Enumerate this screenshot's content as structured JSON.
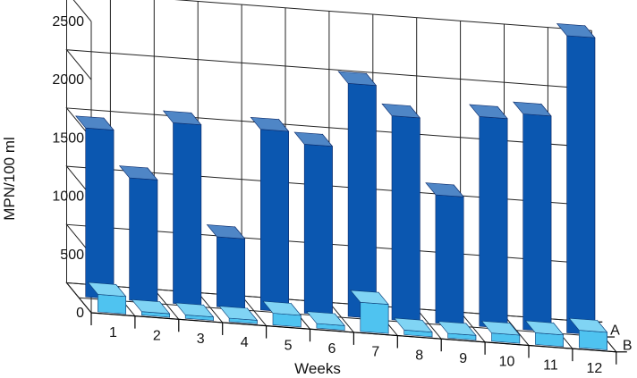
{
  "chart_data": {
    "type": "bar",
    "subtype": "3d-bar",
    "categories": [
      "1",
      "2",
      "3",
      "4",
      "5",
      "6",
      "7",
      "8",
      "9",
      "10",
      "11",
      "12"
    ],
    "series": [
      {
        "name": "A",
        "values": [
          1450,
          1050,
          1550,
          600,
          1550,
          1450,
          2000,
          1750,
          1100,
          1800,
          1850,
          2550
        ],
        "color": "#0b57b0"
      },
      {
        "name": "B",
        "values": [
          150,
          30,
          30,
          30,
          100,
          40,
          250,
          40,
          40,
          70,
          100,
          150
        ],
        "color": "#4fc3f0"
      }
    ],
    "xlabel": "Weeks",
    "ylabel": "MPN/100 ml",
    "yticks": [
      "0",
      "500",
      "1000",
      "1500",
      "2000",
      "2500"
    ],
    "ylim": [
      0,
      2500
    ],
    "grid": true
  }
}
